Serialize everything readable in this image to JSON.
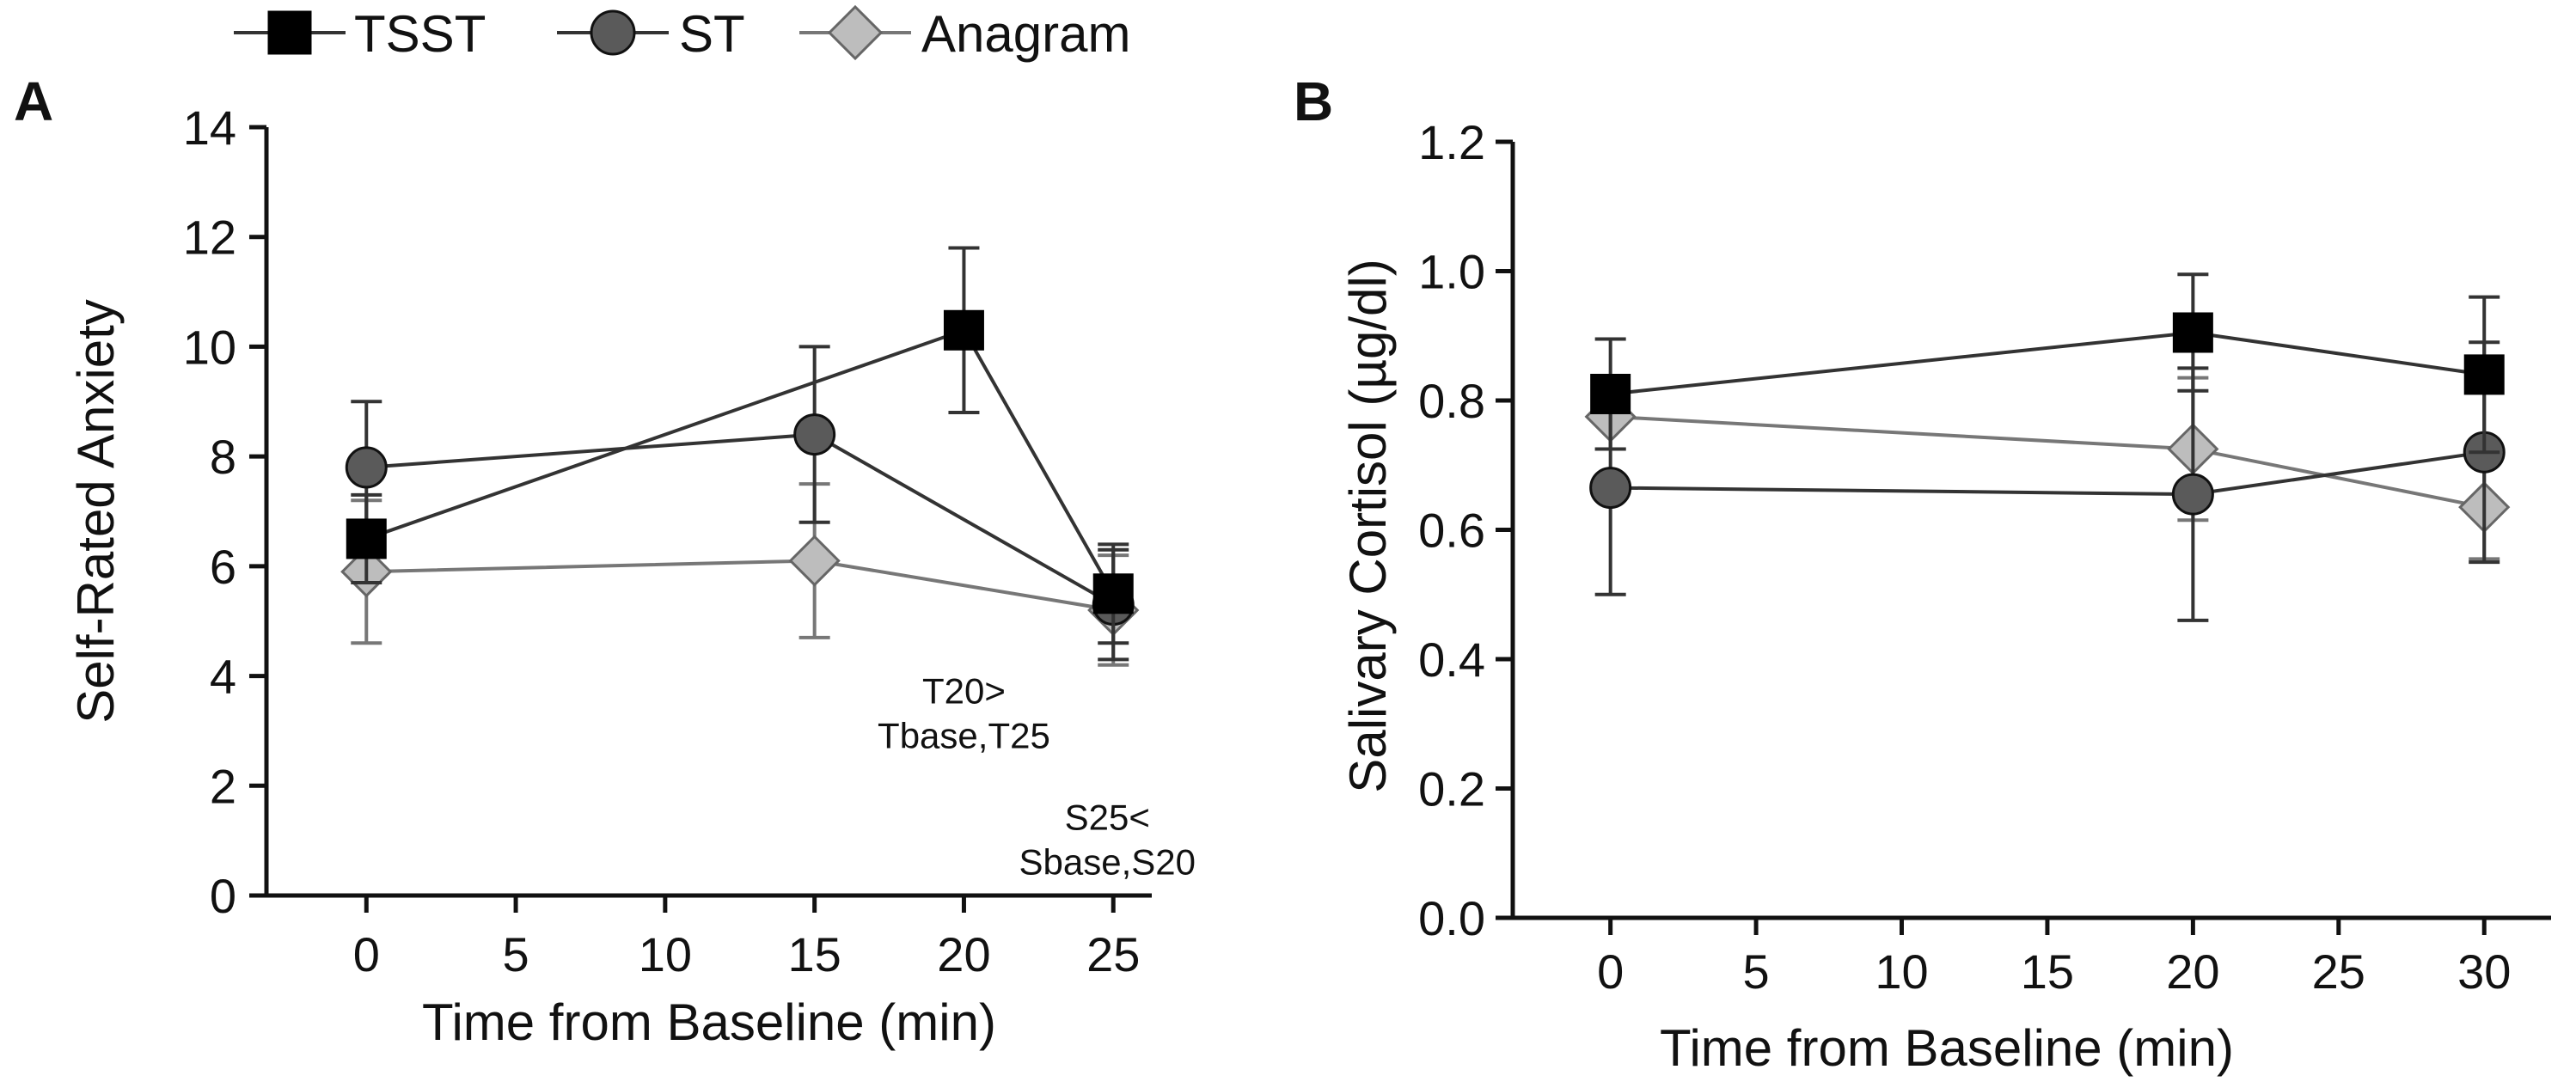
{
  "legend": {
    "items": [
      {
        "name": "TSST",
        "marker": "square",
        "color": "#000000",
        "line": "#333333"
      },
      {
        "name": "ST",
        "marker": "circle",
        "color": "#5a5a5a",
        "line": "#333333"
      },
      {
        "name": "Anagram",
        "marker": "diamond",
        "color": "#bdbdbd",
        "line": "#777777"
      }
    ]
  },
  "chart_data": [
    {
      "panel": "A",
      "type": "line",
      "title": "",
      "xlabel": "Time from Baseline (min)",
      "ylabel": "Self-Rated Anxiety",
      "xlim": [
        -3,
        26
      ],
      "ylim": [
        0,
        14
      ],
      "xticks": [
        0,
        5,
        10,
        15,
        20,
        25
      ],
      "xtick_labels": [
        "0",
        "5",
        "10",
        "15",
        "20",
        "25"
      ],
      "yticks": [
        0,
        2,
        4,
        6,
        8,
        10,
        12,
        14
      ],
      "ytick_labels": [
        "0",
        "2",
        "4",
        "6",
        "8",
        "10",
        "12",
        "14"
      ],
      "y_decimals": 0,
      "grid": false,
      "series": [
        {
          "name": "TSST",
          "x": [
            0,
            20,
            25
          ],
          "values": [
            6.5,
            10.3,
            5.5
          ],
          "err": [
            0.8,
            1.5,
            0.9
          ]
        },
        {
          "name": "ST",
          "x": [
            0,
            15,
            25
          ],
          "values": [
            7.8,
            8.4,
            5.3
          ],
          "err": [
            1.2,
            1.6,
            1.0
          ]
        },
        {
          "name": "Anagram",
          "x": [
            0,
            15,
            25
          ],
          "values": [
            5.9,
            6.1,
            5.2
          ],
          "err": [
            1.3,
            1.4,
            1.0
          ]
        }
      ],
      "annotations": [
        {
          "lines": [
            "T20>",
            "Tbase,T25"
          ],
          "x": 20,
          "y": 3.5
        },
        {
          "lines": [
            "S25<",
            "Sbase,S20"
          ],
          "x": 24.8,
          "y": 1.2
        }
      ]
    },
    {
      "panel": "B",
      "type": "line",
      "title": "",
      "xlabel": "Time from Baseline (min)",
      "ylabel": "Salivary Cortisol (µg/dl)",
      "xlim": [
        -3,
        32
      ],
      "ylim": [
        0,
        1.2
      ],
      "xticks": [
        0,
        5,
        10,
        15,
        20,
        25,
        30
      ],
      "xtick_labels": [
        "0",
        "5",
        "10",
        "15",
        "20",
        "25",
        "30"
      ],
      "yticks": [
        0,
        0.2,
        0.4,
        0.6,
        0.8,
        1.0,
        1.2
      ],
      "ytick_labels": [
        "0.0",
        "0.2",
        "0.4",
        "0.6",
        "0.8",
        "1.0",
        "1.2"
      ],
      "y_decimals": 1,
      "grid": false,
      "series": [
        {
          "name": "TSST",
          "x": [
            0,
            20,
            30
          ],
          "values": [
            0.81,
            0.905,
            0.84
          ],
          "err": [
            0.085,
            0.09,
            0.12
          ]
        },
        {
          "name": "ST",
          "x": [
            0,
            20,
            30
          ],
          "values": [
            0.665,
            0.655,
            0.72
          ],
          "err": [
            0.165,
            0.195,
            0.17
          ]
        },
        {
          "name": "Anagram",
          "x": [
            0,
            20,
            30
          ],
          "values": [
            0.775,
            0.725,
            0.635
          ],
          "err": [
            0.05,
            0.11,
            0.08
          ]
        }
      ],
      "annotations": []
    }
  ]
}
